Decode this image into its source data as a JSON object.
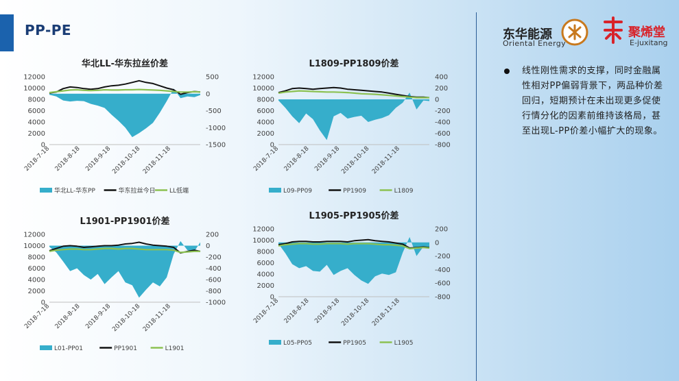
{
  "page": {
    "title": "PP-PE"
  },
  "logos": {
    "oriental_cn": "东华能源",
    "oriental_en": "Oriental Energy",
    "juxitang_cn": "聚烯堂",
    "juxitang_en": "E-juxitang"
  },
  "bullet": {
    "text": "线性刚性需求的支撑，同时金融属性相对PP偏弱背景下，两品种价差回归，短期预计在未出现更多促使行情分化的因素前维持该格局，甚至出现L-PP价差小幅扩大的现象。"
  },
  "colors": {
    "area": "#36aecb",
    "line_main": "#111111",
    "line_green": "#8cc152"
  },
  "chart_data": [
    {
      "type": "area",
      "title": "华北LL-华东拉丝价差",
      "x_ticks": [
        "2018-7-18",
        "2018-8-18",
        "2018-9-18",
        "2018-10-18",
        "2018-11-18"
      ],
      "x_range": [
        "2018-7-18",
        "2018-12-18"
      ],
      "left_axis": {
        "ticks": [
          "0",
          "2000",
          "4000",
          "6000",
          "8000",
          "10000",
          "12000"
        ],
        "min": 0,
        "max": 12000
      },
      "right_axis": {
        "ticks": [
          "-1500",
          "-1000",
          "-500",
          "0",
          "500"
        ],
        "min": -1500,
        "max": 500
      },
      "series": [
        {
          "name": "华北LL-华东PP",
          "axis": "right",
          "kind": "area",
          "x": [
            "2018-7-18",
            "2018-7-25",
            "2018-8-1",
            "2018-8-8",
            "2018-8-15",
            "2018-8-22",
            "2018-8-29",
            "2018-9-5",
            "2018-9-12",
            "2018-9-19",
            "2018-9-26",
            "2018-10-3",
            "2018-10-10",
            "2018-10-17",
            "2018-10-24",
            "2018-10-31",
            "2018-11-7",
            "2018-11-14",
            "2018-11-21",
            "2018-11-28",
            "2018-12-5",
            "2018-12-12",
            "2018-12-18"
          ],
          "values": [
            -30,
            -80,
            -200,
            -230,
            -210,
            -220,
            -300,
            -350,
            -420,
            -620,
            -800,
            -1000,
            -1280,
            -1160,
            -1020,
            -860,
            -560,
            -220,
            150,
            -130,
            -80,
            -100,
            -40
          ]
        },
        {
          "name": "华东拉丝今日",
          "axis": "left",
          "kind": "line",
          "x": [
            "2018-7-18",
            "2018-7-25",
            "2018-8-1",
            "2018-8-8",
            "2018-8-15",
            "2018-8-22",
            "2018-8-29",
            "2018-9-5",
            "2018-9-12",
            "2018-9-19",
            "2018-9-26",
            "2018-10-3",
            "2018-10-10",
            "2018-10-17",
            "2018-10-24",
            "2018-10-31",
            "2018-11-7",
            "2018-11-14",
            "2018-11-21",
            "2018-11-28",
            "2018-12-5",
            "2018-12-12",
            "2018-12-18"
          ],
          "values": [
            9100,
            9300,
            9900,
            10200,
            10100,
            9900,
            9800,
            9900,
            10200,
            10400,
            10500,
            10700,
            11000,
            11300,
            11000,
            10800,
            10400,
            10000,
            9700,
            8900,
            9200,
            9400,
            9300
          ]
        },
        {
          "name": "LL低端",
          "axis": "left",
          "kind": "line",
          "x": [
            "2018-7-18",
            "2018-7-25",
            "2018-8-1",
            "2018-8-8",
            "2018-8-15",
            "2018-8-22",
            "2018-8-29",
            "2018-9-5",
            "2018-9-12",
            "2018-9-19",
            "2018-9-26",
            "2018-10-3",
            "2018-10-10",
            "2018-10-17",
            "2018-10-24",
            "2018-10-31",
            "2018-11-7",
            "2018-11-14",
            "2018-11-21",
            "2018-11-28",
            "2018-12-5",
            "2018-12-12",
            "2018-12-18"
          ],
          "values": [
            9200,
            9350,
            9500,
            9650,
            9700,
            9600,
            9550,
            9600,
            9700,
            9650,
            9650,
            9700,
            9700,
            9750,
            9700,
            9650,
            9600,
            9500,
            9400,
            9300,
            9300,
            9350,
            9300
          ]
        }
      ]
    },
    {
      "type": "area",
      "title": "L1809-PP1809价差",
      "x_ticks": [
        "2018-7-18",
        "2018-8-18",
        "2018-9-18",
        "2018-10-18",
        "2018-11-18"
      ],
      "x_range": [
        "2018-7-18",
        "2018-12-18"
      ],
      "left_axis": {
        "ticks": [
          "0",
          "2000",
          "4000",
          "6000",
          "8000",
          "10000",
          "12000"
        ],
        "min": 0,
        "max": 12000
      },
      "right_axis": {
        "ticks": [
          "-800",
          "-600",
          "-400",
          "-200",
          "0",
          "200",
          "400"
        ],
        "min": -800,
        "max": 400
      },
      "series": [
        {
          "name": "L09-PP09",
          "axis": "right",
          "kind": "area",
          "x": [
            "2018-7-18",
            "2018-7-25",
            "2018-8-1",
            "2018-8-8",
            "2018-8-15",
            "2018-8-22",
            "2018-8-29",
            "2018-9-5",
            "2018-9-12",
            "2018-9-19",
            "2018-9-26",
            "2018-10-3",
            "2018-10-10",
            "2018-10-17",
            "2018-10-24",
            "2018-10-31",
            "2018-11-7",
            "2018-11-14",
            "2018-11-21",
            "2018-11-28",
            "2018-12-5",
            "2018-12-12",
            "2018-12-18"
          ],
          "values": [
            -20,
            -150,
            -300,
            -420,
            -250,
            -350,
            -550,
            -720,
            -300,
            -240,
            -340,
            -310,
            -290,
            -400,
            -360,
            -330,
            -280,
            -150,
            -60,
            120,
            -180,
            -20,
            -30
          ]
        },
        {
          "name": "PP1909",
          "axis": "left",
          "kind": "line",
          "x": [
            "2018-7-18",
            "2018-7-25",
            "2018-8-1",
            "2018-8-8",
            "2018-8-15",
            "2018-8-22",
            "2018-8-29",
            "2018-9-5",
            "2018-9-12",
            "2018-9-19",
            "2018-9-26",
            "2018-10-3",
            "2018-10-10",
            "2018-10-17",
            "2018-10-24",
            "2018-10-31",
            "2018-11-7",
            "2018-11-14",
            "2018-11-21",
            "2018-11-28",
            "2018-12-5",
            "2018-12-12",
            "2018-12-18"
          ],
          "values": [
            9200,
            9500,
            9900,
            10000,
            9900,
            9800,
            9900,
            10000,
            10100,
            10000,
            9800,
            9700,
            9600,
            9500,
            9400,
            9300,
            9100,
            8900,
            8700,
            8500,
            8400,
            8400,
            8300
          ]
        },
        {
          "name": "L1809",
          "axis": "left",
          "kind": "line",
          "x": [
            "2018-7-18",
            "2018-7-25",
            "2018-8-1",
            "2018-8-8",
            "2018-8-15",
            "2018-8-22",
            "2018-8-29",
            "2018-9-5",
            "2018-9-12",
            "2018-9-19",
            "2018-9-26",
            "2018-10-3",
            "2018-10-10",
            "2018-10-17",
            "2018-10-24",
            "2018-10-31",
            "2018-11-7",
            "2018-11-14",
            "2018-11-21",
            "2018-11-28",
            "2018-12-5",
            "2018-12-12",
            "2018-12-18"
          ],
          "values": [
            9100,
            9300,
            9400,
            9500,
            9450,
            9400,
            9350,
            9300,
            9300,
            9250,
            9200,
            9100,
            9000,
            8950,
            8900,
            8800,
            8700,
            8600,
            8500,
            8400,
            8300,
            8300,
            8300
          ]
        }
      ]
    },
    {
      "type": "area",
      "title": "L1901-PP1901价差",
      "x_ticks": [
        "2018-7-18",
        "2018-8-18",
        "2018-9-18",
        "2018-10-18",
        "2018-11-18"
      ],
      "x_range": [
        "2018-7-18",
        "2018-12-18"
      ],
      "left_axis": {
        "ticks": [
          "0",
          "2000",
          "4000",
          "6000",
          "8000",
          "10000",
          "12000"
        ],
        "min": 0,
        "max": 12000
      },
      "right_axis": {
        "ticks": [
          "-1000",
          "-800",
          "-600",
          "-400",
          "-200",
          "0",
          "200"
        ],
        "min": -1000,
        "max": 200
      },
      "series": [
        {
          "name": "L01-PP01",
          "axis": "right",
          "kind": "area",
          "x": [
            "2018-7-18",
            "2018-7-25",
            "2018-8-1",
            "2018-8-8",
            "2018-8-15",
            "2018-8-22",
            "2018-8-29",
            "2018-9-5",
            "2018-9-12",
            "2018-9-19",
            "2018-9-26",
            "2018-10-3",
            "2018-10-10",
            "2018-10-17",
            "2018-10-24",
            "2018-10-31",
            "2018-11-7",
            "2018-11-14",
            "2018-11-21",
            "2018-11-28",
            "2018-12-5",
            "2018-12-12",
            "2018-12-18"
          ],
          "values": [
            -20,
            -120,
            -280,
            -450,
            -400,
            -520,
            -600,
            -500,
            -680,
            -560,
            -450,
            -650,
            -700,
            -920,
            -780,
            -650,
            -720,
            -560,
            -150,
            80,
            -80,
            -100,
            60
          ]
        },
        {
          "name": "PP1901",
          "axis": "left",
          "kind": "line",
          "x": [
            "2018-7-18",
            "2018-7-25",
            "2018-8-1",
            "2018-8-8",
            "2018-8-15",
            "2018-8-22",
            "2018-8-29",
            "2018-9-5",
            "2018-9-12",
            "2018-9-19",
            "2018-9-26",
            "2018-10-3",
            "2018-10-10",
            "2018-10-17",
            "2018-10-24",
            "2018-10-31",
            "2018-11-7",
            "2018-11-14",
            "2018-11-21",
            "2018-11-28",
            "2018-12-5",
            "2018-12-12",
            "2018-12-18"
          ],
          "values": [
            9100,
            9500,
            9900,
            10000,
            9900,
            9700,
            9800,
            9900,
            10000,
            10000,
            10100,
            10300,
            10400,
            10600,
            10300,
            10100,
            10000,
            9900,
            9700,
            8700,
            9000,
            9200,
            9000
          ]
        },
        {
          "name": "L1901",
          "axis": "left",
          "kind": "line",
          "x": [
            "2018-7-18",
            "2018-7-25",
            "2018-8-1",
            "2018-8-8",
            "2018-8-15",
            "2018-8-22",
            "2018-8-29",
            "2018-9-5",
            "2018-9-12",
            "2018-9-19",
            "2018-9-26",
            "2018-10-3",
            "2018-10-10",
            "2018-10-17",
            "2018-10-24",
            "2018-10-31",
            "2018-11-7",
            "2018-11-14",
            "2018-11-21",
            "2018-11-28",
            "2018-12-5",
            "2018-12-12",
            "2018-12-18"
          ],
          "values": [
            9000,
            9200,
            9300,
            9400,
            9400,
            9300,
            9300,
            9400,
            9500,
            9500,
            9400,
            9500,
            9500,
            9400,
            9300,
            9300,
            9300,
            9300,
            9200,
            8800,
            8900,
            9000,
            9000
          ]
        }
      ]
    },
    {
      "type": "area",
      "title": "L1905-PP1905价差",
      "x_ticks": [
        "2018-7-18",
        "2018-8-18",
        "2018-9-18",
        "2018-10-18",
        "2018-11-18"
      ],
      "x_range": [
        "2018-7-18",
        "2018-12-18"
      ],
      "left_axis": {
        "ticks": [
          "0",
          "2000",
          "4000",
          "6000",
          "8000",
          "10000",
          "12000"
        ],
        "min": 0,
        "max": 12000
      },
      "right_axis": {
        "ticks": [
          "-800",
          "-600",
          "-400",
          "-200",
          "0",
          "200"
        ],
        "min": -800,
        "max": 200
      },
      "series": [
        {
          "name": "L05-PP05",
          "axis": "right",
          "kind": "area",
          "x": [
            "2018-7-18",
            "2018-7-25",
            "2018-8-1",
            "2018-8-8",
            "2018-8-15",
            "2018-8-22",
            "2018-8-29",
            "2018-9-5",
            "2018-9-12",
            "2018-9-19",
            "2018-9-26",
            "2018-10-3",
            "2018-10-10",
            "2018-10-17",
            "2018-10-24",
            "2018-10-31",
            "2018-11-7",
            "2018-11-14",
            "2018-11-21",
            "2018-11-28",
            "2018-12-5",
            "2018-12-12",
            "2018-12-18"
          ],
          "values": [
            -20,
            -160,
            -320,
            -380,
            -350,
            -420,
            -430,
            -330,
            -480,
            -420,
            -380,
            -480,
            -560,
            -610,
            -500,
            -460,
            -480,
            -440,
            -150,
            80,
            -200,
            -60,
            -80
          ]
        },
        {
          "name": "PP1905",
          "axis": "left",
          "kind": "line",
          "x": [
            "2018-7-18",
            "2018-7-25",
            "2018-8-1",
            "2018-8-8",
            "2018-8-15",
            "2018-8-22",
            "2018-8-29",
            "2018-9-5",
            "2018-9-12",
            "2018-9-19",
            "2018-9-26",
            "2018-10-3",
            "2018-10-10",
            "2018-10-17",
            "2018-10-24",
            "2018-10-31",
            "2018-11-7",
            "2018-11-14",
            "2018-11-21",
            "2018-11-28",
            "2018-12-5",
            "2018-12-12",
            "2018-12-18"
          ],
          "values": [
            9200,
            9400,
            9700,
            9800,
            9800,
            9700,
            9700,
            9800,
            9800,
            9800,
            9700,
            9900,
            10000,
            10100,
            9900,
            9800,
            9700,
            9500,
            9300,
            8600,
            8700,
            8800,
            8700
          ]
        },
        {
          "name": "L1905",
          "axis": "left",
          "kind": "line",
          "x": [
            "2018-7-18",
            "2018-7-25",
            "2018-8-1",
            "2018-8-8",
            "2018-8-15",
            "2018-8-22",
            "2018-8-29",
            "2018-9-5",
            "2018-9-12",
            "2018-9-19",
            "2018-9-26",
            "2018-10-3",
            "2018-10-10",
            "2018-10-17",
            "2018-10-24",
            "2018-10-31",
            "2018-11-7",
            "2018-11-14",
            "2018-11-21",
            "2018-11-28",
            "2018-12-5",
            "2018-12-12",
            "2018-12-18"
          ],
          "values": [
            9000,
            9200,
            9300,
            9400,
            9400,
            9300,
            9300,
            9400,
            9400,
            9400,
            9300,
            9400,
            9400,
            9400,
            9300,
            9200,
            9200,
            9100,
            9000,
            8500,
            8600,
            8700,
            8600
          ]
        }
      ]
    }
  ]
}
